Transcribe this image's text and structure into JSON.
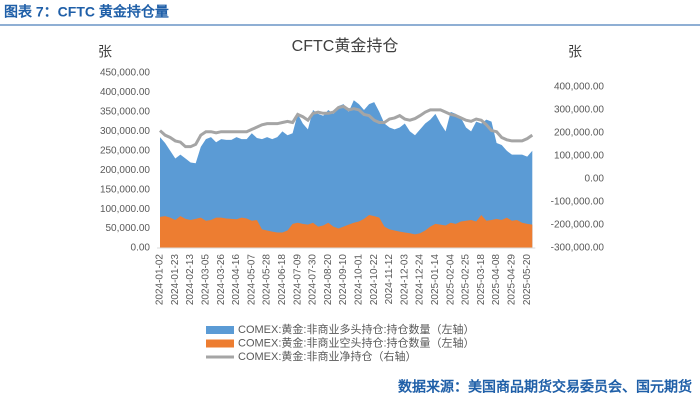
{
  "header": "图表 7：CFTC 黄金持仓量",
  "source": "数据来源：美国商品期货交易委员会、国元期货",
  "chart_data": {
    "type": "area-line",
    "title": "CFTC黄金持仓",
    "y_label": "张",
    "y2_label": "张",
    "categories": [
      "2024-01-02",
      null,
      null,
      "2024-01-23",
      null,
      null,
      "2024-02-13",
      null,
      null,
      "2024-03-05",
      null,
      null,
      "2024-03-26",
      null,
      null,
      "2024-04-16",
      null,
      null,
      "2024-05-07",
      null,
      null,
      "2024-05-28",
      null,
      null,
      "2024-06-18",
      null,
      null,
      "2024-07-09",
      null,
      null,
      "2024-07-30",
      null,
      null,
      "2024-08-20",
      null,
      null,
      "2024-09-10",
      null,
      null,
      "2024-10-01",
      null,
      null,
      "2024-10-22",
      null,
      null,
      "2024-11-12",
      null,
      null,
      "2024-12-03",
      null,
      null,
      "2024-12-24",
      null,
      null,
      "2025-01-14",
      null,
      null,
      "2025-02-04",
      null,
      null,
      "2025-02-25",
      null,
      null,
      "2025-03-18",
      null,
      null,
      "2025-04-08",
      null,
      null,
      "2025-04-29",
      null,
      null,
      "2025-05-20",
      null
    ],
    "series": [
      {
        "name": "COMEX:黄金:非商业多头持仓:持仓数量（左轴）",
        "color": "#5b9bd5",
        "kind": "area",
        "axis": "y",
        "values": [
          285000,
          270000,
          250000,
          230000,
          240000,
          230000,
          220000,
          218000,
          260000,
          280000,
          285000,
          272000,
          280000,
          278000,
          278000,
          285000,
          280000,
          280000,
          295000,
          283000,
          280000,
          285000,
          280000,
          285000,
          300000,
          290000,
          295000,
          345000,
          320000,
          305000,
          355000,
          345000,
          340000,
          355000,
          345000,
          365000,
          370000,
          350000,
          380000,
          370000,
          355000,
          370000,
          375000,
          350000,
          320000,
          310000,
          305000,
          310000,
          320000,
          300000,
          290000,
          305000,
          320000,
          330000,
          345000,
          320000,
          300000,
          350000,
          345000,
          335000,
          310000,
          300000,
          325000,
          320000,
          330000,
          325000,
          270000,
          265000,
          250000,
          240000,
          240000,
          240000,
          235000,
          250000
        ]
      },
      {
        "name": "COMEX:黄金:非商业空头持仓:持仓数量（左轴）",
        "color": "#ed7d31",
        "kind": "area",
        "axis": "y",
        "values": [
          80000,
          82000,
          78000,
          72000,
          82000,
          75000,
          72000,
          75000,
          78000,
          70000,
          72000,
          78000,
          78000,
          76000,
          75000,
          74000,
          78000,
          76000,
          70000,
          72000,
          48000,
          45000,
          42000,
          40000,
          40000,
          45000,
          62000,
          65000,
          62000,
          60000,
          65000,
          55000,
          58000,
          65000,
          55000,
          50000,
          55000,
          60000,
          65000,
          68000,
          75000,
          85000,
          82000,
          78000,
          55000,
          48000,
          45000,
          42000,
          40000,
          38000,
          35000,
          38000,
          45000,
          55000,
          62000,
          60000,
          58000,
          65000,
          62000,
          68000,
          70000,
          72000,
          68000,
          85000,
          70000,
          72000,
          75000,
          72000,
          78000,
          70000,
          72000,
          65000,
          62000,
          60000
        ]
      },
      {
        "name": "COMEX:黄金:非商业净持仓（右轴）",
        "color": "#a5a5a5",
        "kind": "line",
        "axis": "y2",
        "values": [
          210000,
          190000,
          180000,
          165000,
          160000,
          140000,
          140000,
          150000,
          190000,
          205000,
          205000,
          200000,
          205000,
          205000,
          205000,
          205000,
          205000,
          205000,
          215000,
          225000,
          235000,
          240000,
          240000,
          240000,
          245000,
          250000,
          245000,
          280000,
          270000,
          255000,
          285000,
          290000,
          285000,
          285000,
          290000,
          310000,
          315000,
          300000,
          305000,
          300000,
          280000,
          275000,
          255000,
          245000,
          245000,
          260000,
          265000,
          275000,
          260000,
          255000,
          262000,
          275000,
          290000,
          300000,
          300000,
          300000,
          290000,
          280000,
          275000,
          265000,
          255000,
          250000,
          260000,
          255000,
          235000,
          210000,
          205000,
          180000,
          170000,
          165000,
          165000,
          165000,
          175000,
          190000
        ]
      }
    ],
    "ylim": [
      0,
      450000
    ],
    "yticks": [
      {
        "value": 0,
        "label": "0.00"
      },
      {
        "value": 50000,
        "label": "50,000.00"
      },
      {
        "value": 100000,
        "label": "100,000.00"
      },
      {
        "value": 150000,
        "label": "150,000.00"
      },
      {
        "value": 200000,
        "label": "200,000.00"
      },
      {
        "value": 250000,
        "label": "250,000.00"
      },
      {
        "value": 300000,
        "label": "300,000.00"
      },
      {
        "value": 350000,
        "label": "350,000.00"
      },
      {
        "value": 400000,
        "label": "400,000.00"
      },
      {
        "value": 450000,
        "label": "450,000.00"
      }
    ],
    "y2lim": [
      -300000,
      460000
    ],
    "y2ticks": [
      {
        "value": -300000,
        "label": "-300,000.00"
      },
      {
        "value": -200000,
        "label": "-200,000.00"
      },
      {
        "value": -100000,
        "label": "-100,000.00"
      },
      {
        "value": 0,
        "label": "0.00"
      },
      {
        "value": 100000,
        "label": "100,000.00"
      },
      {
        "value": 200000,
        "label": "200,000.00"
      },
      {
        "value": 300000,
        "label": "300,000.00"
      },
      {
        "value": 400000,
        "label": "400,000.00"
      }
    ],
    "legend": "bottom"
  }
}
